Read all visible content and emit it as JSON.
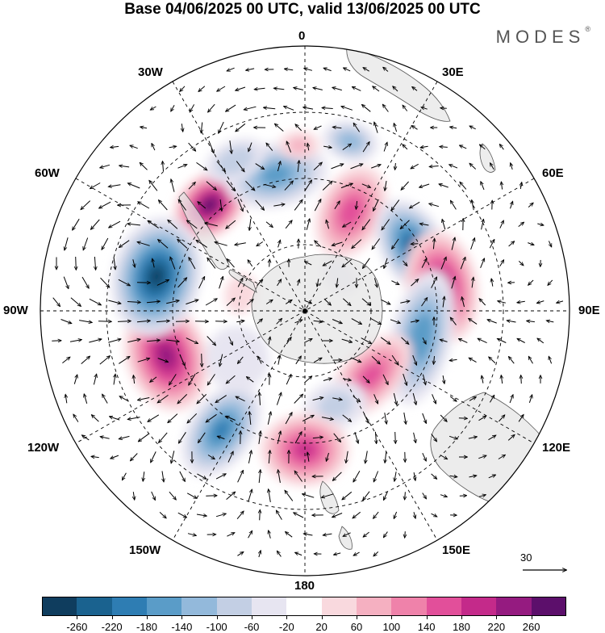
{
  "title": "Base 04/06/2025 00 UTC, valid 13/06/2025 00 UTC",
  "logo": {
    "text": "MODES",
    "mark": "®"
  },
  "longitude_labels": {
    "top": "0",
    "top_right": "30E",
    "right_upper": "60E",
    "right": "90E",
    "right_lower": "120E",
    "bottom_right": "150E",
    "bottom": "180",
    "bottom_left": "150W",
    "left_lower": "120W",
    "left": "90W",
    "left_upper": "60W",
    "top_left": "30W"
  },
  "reference_vector": {
    "label": "30"
  },
  "colorbar": {
    "colors": [
      "#0f3d5e",
      "#1a628f",
      "#2e7db3",
      "#5a9cc8",
      "#93b9db",
      "#c3cfe4",
      "#e7e5f1",
      "#ffffff",
      "#f9d9de",
      "#f5b0c1",
      "#ef82aa",
      "#e24f9a",
      "#c42a8a",
      "#951b80",
      "#5c0f6b"
    ],
    "tick_labels": [
      "-260",
      "-220",
      "-180",
      "-140",
      "-100",
      "-60",
      "-20",
      "20",
      "60",
      "100",
      "140",
      "180",
      "220",
      "260"
    ]
  },
  "anomaly_centers": [
    {
      "lon": -42,
      "colat": 43,
      "value": 270,
      "rx": 50,
      "ry": 38
    },
    {
      "lon": -12,
      "colat": 42,
      "value": -150,
      "rx": 65,
      "ry": 40
    },
    {
      "lon": 25,
      "colat": 33,
      "value": 160,
      "rx": 40,
      "ry": 60
    },
    {
      "lon": 60,
      "colat": 38,
      "value": -230,
      "rx": 65,
      "ry": 40
    },
    {
      "lon": 80,
      "colat": 42,
      "value": 220,
      "rx": 70,
      "ry": 45
    },
    {
      "lon": 103,
      "colat": 36,
      "value": -170,
      "rx": 85,
      "ry": 38
    },
    {
      "lon": 135,
      "colat": 28,
      "value": 150,
      "rx": 65,
      "ry": 35
    },
    {
      "lon": 162,
      "colat": 30,
      "value": -70,
      "rx": 40,
      "ry": 30
    },
    {
      "lon": 180,
      "colat": 42,
      "value": 180,
      "rx": 55,
      "ry": 45
    },
    {
      "lon": -145,
      "colat": 44,
      "value": -180,
      "rx": 40,
      "ry": 65
    },
    {
      "lon": -108,
      "colat": 44,
      "value": 230,
      "rx": 70,
      "ry": 50
    },
    {
      "lon": -77,
      "colat": 46,
      "value": -260,
      "rx": 75,
      "ry": 55
    },
    {
      "lon": -125,
      "colat": 25,
      "value": -40,
      "rx": 40,
      "ry": 40
    },
    {
      "lon": -75,
      "colat": 20,
      "value": 30,
      "rx": 25,
      "ry": 20
    },
    {
      "lon": 45,
      "colat": 15,
      "value": -30,
      "rx": 25,
      "ry": 18
    },
    {
      "lon": -25,
      "colat": 50,
      "value": -90,
      "rx": 40,
      "ry": 25
    },
    {
      "lon": 15,
      "colat": 53,
      "value": -120,
      "rx": 35,
      "ry": 25
    },
    {
      "lon": -2,
      "colat": 50,
      "value": 60,
      "rx": 25,
      "ry": 18
    }
  ]
}
